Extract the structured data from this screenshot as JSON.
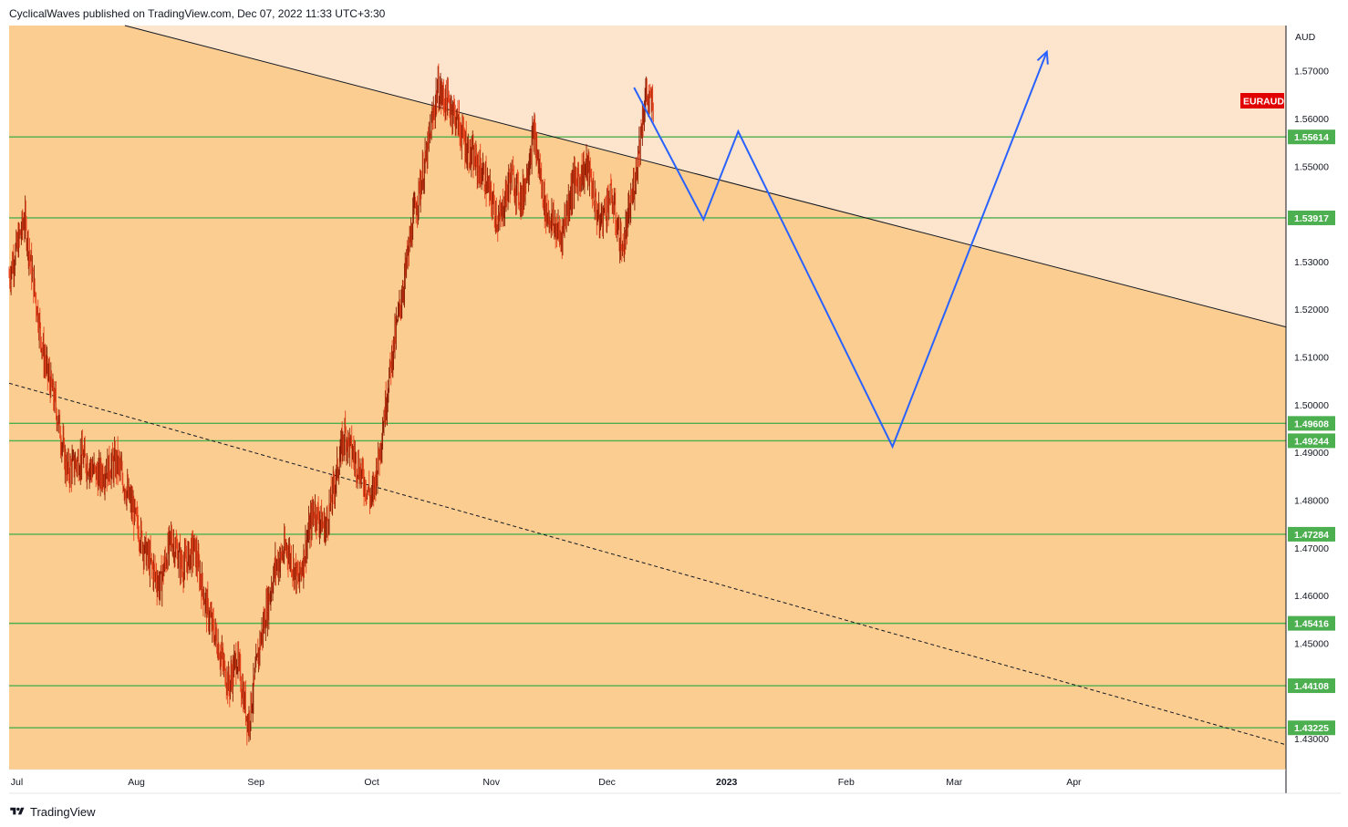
{
  "header": {
    "publisher_text": "CyclicalWaves published on TradingView.com, Dec 07, 2022 11:33 UTC+3:30"
  },
  "footer": {
    "brand": "TradingView",
    "logo_icon": "tradingview-logo-icon"
  },
  "colors": {
    "zone_dark": "#fbcd91",
    "zone_light": "#fce5cc",
    "level_line": "#4caf50",
    "projection": "#2962ff",
    "candle_up": "#8b1a00",
    "candle_down": "#e8401a",
    "symbol_badge": "#e00000"
  },
  "chart_data": {
    "type": "candlestick",
    "symbol": "EURAUD",
    "currency": "AUD",
    "x_axis": {
      "ticks": [
        {
          "label": "Jul",
          "date": "2022-07-01"
        },
        {
          "label": "Aug",
          "date": "2022-08-01"
        },
        {
          "label": "Sep",
          "date": "2022-09-01"
        },
        {
          "label": "Oct",
          "date": "2022-10-01"
        },
        {
          "label": "Nov",
          "date": "2022-11-01"
        },
        {
          "label": "Dec",
          "date": "2022-12-01"
        },
        {
          "label": "2023",
          "date": "2023-01-01",
          "bold": true
        },
        {
          "label": "Feb",
          "date": "2023-02-01"
        },
        {
          "label": "Mar",
          "date": "2023-03-01"
        },
        {
          "label": "Apr",
          "date": "2023-04-01"
        }
      ],
      "range": [
        "2022-06-29",
        "2023-05-26"
      ]
    },
    "y_axis": {
      "ticks": [
        "1.57000",
        "1.56000",
        "1.55000",
        "1.53000",
        "1.52000",
        "1.51000",
        "1.50000",
        "1.49000",
        "1.48000",
        "1.47000",
        "1.46000",
        "1.45000",
        "1.43000"
      ],
      "range": [
        1.4235,
        1.5795
      ]
    },
    "levels": [
      "1.55614",
      "1.53917",
      "1.49608",
      "1.49244",
      "1.47284",
      "1.45416",
      "1.44108",
      "1.43225"
    ],
    "trendline_solid": {
      "points": [
        [
          "2022-07-29",
          1.5795
        ],
        [
          "2023-05-26",
          1.5163
        ]
      ]
    },
    "trendline_dashed": {
      "points": [
        [
          "2022-06-29",
          1.5045
        ],
        [
          "2023-05-26",
          1.4287
        ]
      ]
    },
    "projection_path": [
      [
        "2022-12-08",
        1.5665
      ],
      [
        "2022-12-26",
        1.5388
      ],
      [
        "2023-01-04",
        1.5573
      ],
      [
        "2023-02-13",
        1.4912
      ],
      [
        "2023-03-25",
        1.574
      ]
    ],
    "price_path": [
      [
        "2022-06-29",
        1.527
      ],
      [
        "2022-07-03",
        1.539
      ],
      [
        "2022-07-08",
        1.51
      ],
      [
        "2022-07-11",
        1.5
      ],
      [
        "2022-07-14",
        1.486
      ],
      [
        "2022-07-18",
        1.489
      ],
      [
        "2022-07-22",
        1.485
      ],
      [
        "2022-07-27",
        1.488
      ],
      [
        "2022-07-31",
        1.478
      ],
      [
        "2022-08-03",
        1.47
      ],
      [
        "2022-08-07",
        1.462
      ],
      [
        "2022-08-10",
        1.472
      ],
      [
        "2022-08-13",
        1.466
      ],
      [
        "2022-08-16",
        1.47
      ],
      [
        "2022-08-19",
        1.458
      ],
      [
        "2022-08-22",
        1.45
      ],
      [
        "2022-08-25",
        1.441
      ],
      [
        "2022-08-27",
        1.447
      ],
      [
        "2022-08-30",
        1.433
      ],
      [
        "2022-09-02",
        1.45
      ],
      [
        "2022-09-06",
        1.466
      ],
      [
        "2022-09-09",
        1.47
      ],
      [
        "2022-09-12",
        1.463
      ],
      [
        "2022-09-16",
        1.478
      ],
      [
        "2022-09-19",
        1.474
      ],
      [
        "2022-09-22",
        1.486
      ],
      [
        "2022-09-24",
        1.494
      ],
      [
        "2022-09-28",
        1.486
      ],
      [
        "2022-10-01",
        1.48
      ],
      [
        "2022-10-03",
        1.49
      ],
      [
        "2022-10-06",
        1.509
      ],
      [
        "2022-10-09",
        1.524
      ],
      [
        "2022-10-12",
        1.54
      ],
      [
        "2022-10-15",
        1.551
      ],
      [
        "2022-10-18",
        1.566
      ],
      [
        "2022-10-22",
        1.562
      ],
      [
        "2022-10-26",
        1.553
      ],
      [
        "2022-10-30",
        1.548
      ],
      [
        "2022-11-03",
        1.538
      ],
      [
        "2022-11-06",
        1.548
      ],
      [
        "2022-11-09",
        1.543
      ],
      [
        "2022-11-12",
        1.557
      ],
      [
        "2022-11-15",
        1.541
      ],
      [
        "2022-11-19",
        1.535
      ],
      [
        "2022-11-22",
        1.546
      ],
      [
        "2022-11-26",
        1.55
      ],
      [
        "2022-11-29",
        1.538
      ],
      [
        "2022-12-02",
        1.544
      ],
      [
        "2022-12-05",
        1.532
      ],
      [
        "2022-12-08",
        1.546
      ],
      [
        "2022-12-11",
        1.565
      ],
      [
        "2022-12-13",
        1.562
      ]
    ]
  }
}
